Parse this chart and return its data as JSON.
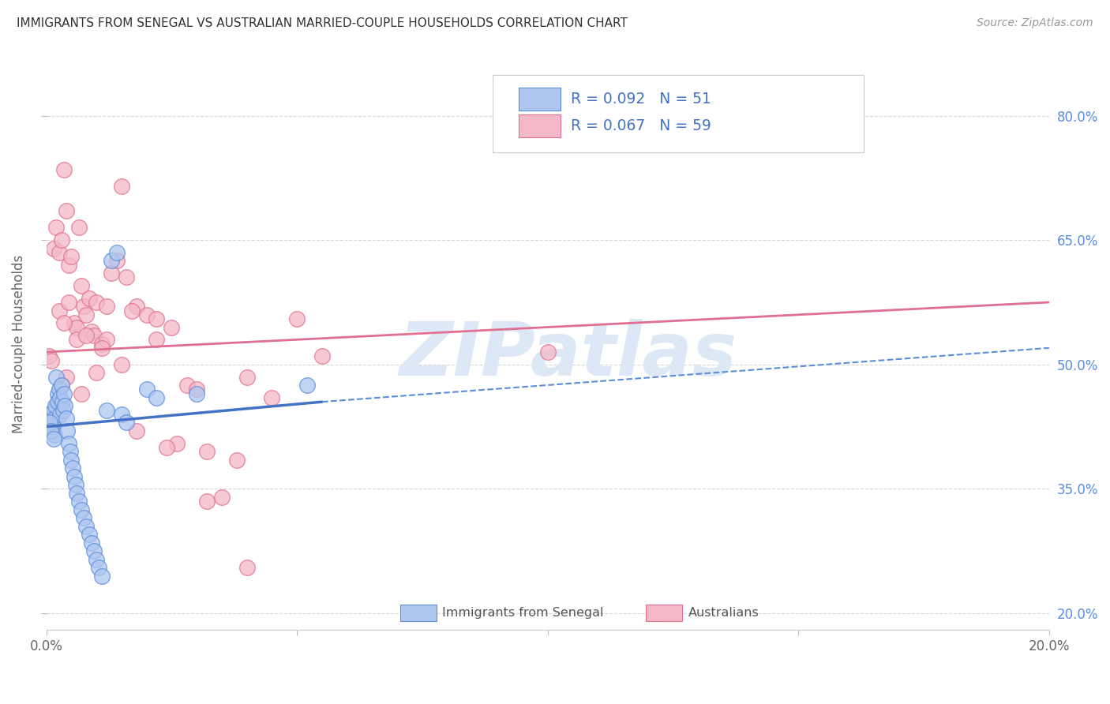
{
  "title": "IMMIGRANTS FROM SENEGAL VS AUSTRALIAN MARRIED-COUPLE HOUSEHOLDS CORRELATION CHART",
  "source": "Source: ZipAtlas.com",
  "ylabel": "Married-couple Households",
  "yticks": [
    20.0,
    35.0,
    50.0,
    65.0,
    80.0
  ],
  "xmin": 0.0,
  "xmax": 20.0,
  "ymin": 18.0,
  "ymax": 87.0,
  "legend_entries": [
    {
      "label": "Immigrants from Senegal",
      "R": "0.092",
      "N": "51",
      "fill": "#aec6f0",
      "edge": "#5b8dd9"
    },
    {
      "label": "Australians",
      "R": "0.067",
      "N": "59",
      "fill": "#f4b8c8",
      "edge": "#e07090"
    }
  ],
  "blue_scatter_x": [
    0.05,
    0.08,
    0.1,
    0.12,
    0.13,
    0.15,
    0.16,
    0.17,
    0.18,
    0.2,
    0.22,
    0.23,
    0.25,
    0.27,
    0.28,
    0.3,
    0.32,
    0.33,
    0.35,
    0.37,
    0.4,
    0.42,
    0.45,
    0.48,
    0.5,
    0.52,
    0.55,
    0.58,
    0.6,
    0.65,
    0.7,
    0.75,
    0.8,
    0.85,
    0.9,
    0.95,
    1.0,
    1.05,
    1.1,
    1.2,
    1.3,
    1.4,
    1.5,
    1.6,
    2.0,
    2.2,
    3.0,
    5.2,
    0.06,
    0.09,
    0.14
  ],
  "blue_scatter_y": [
    44.0,
    43.5,
    42.5,
    43.0,
    42.0,
    44.5,
    41.5,
    43.5,
    45.0,
    48.5,
    46.5,
    45.5,
    47.0,
    46.0,
    44.0,
    47.5,
    45.5,
    44.5,
    46.5,
    45.0,
    43.5,
    42.0,
    40.5,
    39.5,
    38.5,
    37.5,
    36.5,
    35.5,
    34.5,
    33.5,
    32.5,
    31.5,
    30.5,
    29.5,
    28.5,
    27.5,
    26.5,
    25.5,
    24.5,
    44.5,
    62.5,
    63.5,
    44.0,
    43.0,
    47.0,
    46.0,
    46.5,
    47.5,
    43.0,
    42.0,
    41.0
  ],
  "pink_scatter_x": [
    0.05,
    0.1,
    0.15,
    0.2,
    0.25,
    0.3,
    0.35,
    0.4,
    0.45,
    0.5,
    0.55,
    0.6,
    0.65,
    0.7,
    0.75,
    0.8,
    0.85,
    0.9,
    0.95,
    1.0,
    1.1,
    1.2,
    1.3,
    1.4,
    1.5,
    1.6,
    1.8,
    2.0,
    2.2,
    2.5,
    2.8,
    3.0,
    3.2,
    3.5,
    4.0,
    4.5,
    5.0,
    0.25,
    0.35,
    0.45,
    0.6,
    0.8,
    1.0,
    1.2,
    1.5,
    1.8,
    2.2,
    2.6,
    3.2,
    4.0,
    5.5,
    0.4,
    0.7,
    1.1,
    1.7,
    2.4,
    3.8,
    10.0,
    0.3
  ],
  "pink_scatter_y": [
    51.0,
    50.5,
    64.0,
    66.5,
    63.5,
    65.0,
    73.5,
    68.5,
    62.0,
    63.0,
    55.0,
    54.5,
    66.5,
    59.5,
    57.0,
    56.0,
    58.0,
    54.0,
    53.5,
    57.5,
    52.5,
    53.0,
    61.0,
    62.5,
    71.5,
    60.5,
    57.0,
    56.0,
    55.5,
    54.5,
    47.5,
    47.0,
    33.5,
    34.0,
    48.5,
    46.0,
    55.5,
    56.5,
    55.0,
    57.5,
    53.0,
    53.5,
    49.0,
    57.0,
    50.0,
    42.0,
    53.0,
    40.5,
    39.5,
    25.5,
    51.0,
    48.5,
    46.5,
    52.0,
    56.5,
    40.0,
    38.5,
    51.5,
    47.5
  ],
  "blue_trend_x0": 0.0,
  "blue_trend_x1": 5.5,
  "blue_trend_y0": 42.5,
  "blue_trend_y1": 45.5,
  "blue_dash_x0": 5.5,
  "blue_dash_x1": 20.0,
  "blue_dash_y0": 45.5,
  "blue_dash_y1": 52.0,
  "pink_trend_x0": 0.0,
  "pink_trend_x1": 20.0,
  "pink_trend_y0": 51.5,
  "pink_trend_y1": 57.5,
  "blue_scatter_fill": "#aec6f0",
  "blue_scatter_edge": "#5b8dd9",
  "blue_trend_color": "#4472c4",
  "pink_scatter_fill": "#f4b8c8",
  "pink_scatter_edge": "#e07090",
  "pink_trend_color": "#e07090",
  "dashed_color": "#5b8dd9",
  "grid_color": "#d3d3d3",
  "right_axis_color": "#5b8dd9",
  "watermark_color": "#dce8f5",
  "watermark_text": "ZIPatlas"
}
